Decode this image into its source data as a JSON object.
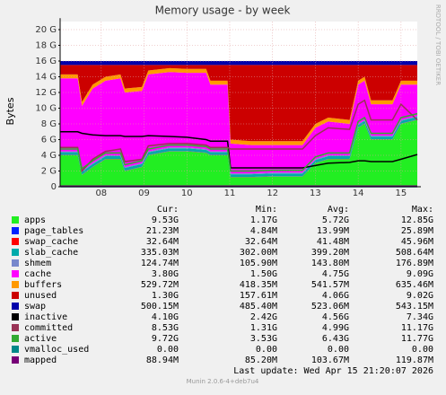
{
  "chart_data": {
    "type": "area",
    "title": "Memory usage - by week",
    "y_label": "Bytes",
    "side_text": "RRDTOOL / TOBI OETIKER",
    "last_update": "Last update: Wed Apr 15 21:20:07 2026",
    "footer": "Munin 2.0.6-4+deb7u4",
    "stat_headers": [
      "Cur:",
      "Min:",
      "Avg:",
      "Max:"
    ],
    "grid": true,
    "xlim": [
      7.04,
      15.38
    ],
    "xticks": [
      {
        "value": 8,
        "label": "08"
      },
      {
        "value": 9,
        "label": "09"
      },
      {
        "value": 10,
        "label": "10"
      },
      {
        "value": 11,
        "label": "11"
      },
      {
        "value": 12,
        "label": "12"
      },
      {
        "value": 13,
        "label": "13"
      },
      {
        "value": 14,
        "label": "14"
      },
      {
        "value": 15,
        "label": "15"
      }
    ],
    "ylim": [
      0,
      21
    ],
    "yticks": [
      {
        "value": 0,
        "label": "0"
      },
      {
        "value": 2,
        "label": "2 G"
      },
      {
        "value": 4,
        "label": "4 G"
      },
      {
        "value": 6,
        "label": "6 G"
      },
      {
        "value": 8,
        "label": "8 G"
      },
      {
        "value": 10,
        "label": "10 G"
      },
      {
        "value": 12,
        "label": "12 G"
      },
      {
        "value": 14,
        "label": "14 G"
      },
      {
        "value": 16,
        "label": "16 G"
      },
      {
        "value": 18,
        "label": "18 G"
      },
      {
        "value": 20,
        "label": "20 G"
      }
    ],
    "x": [
      7.05,
      7.45,
      7.55,
      7.8,
      8.1,
      8.45,
      8.55,
      8.95,
      9.1,
      9.6,
      10.0,
      10.45,
      10.55,
      10.95,
      11.02,
      11.5,
      12.0,
      12.7,
      13.0,
      13.3,
      13.8,
      14.0,
      14.15,
      14.3,
      14.8,
      15.0,
      15.38
    ],
    "series": [
      {
        "name": "apps",
        "color": "#22ee22",
        "stack": true,
        "stats": [
          "9.53G",
          "1.17G",
          "5.72G",
          "12.85G"
        ],
        "values": [
          4.0,
          4.0,
          1.5,
          2.5,
          3.5,
          3.5,
          2.0,
          2.5,
          4.0,
          4.5,
          4.5,
          4.3,
          4.0,
          4.0,
          1.2,
          1.2,
          1.3,
          1.3,
          3.0,
          3.5,
          3.5,
          7.5,
          8.0,
          6.0,
          6.0,
          8.0,
          8.5
        ]
      },
      {
        "name": "page_tables",
        "color": "#0022ff",
        "stack": true,
        "stats": [
          "21.23M",
          "4.84M",
          "13.99M",
          "25.89M"
        ],
        "values": [
          0.02,
          0.02,
          0.02,
          0.02,
          0.02,
          0.02,
          0.02,
          0.02,
          0.02,
          0.02,
          0.02,
          0.02,
          0.02,
          0.02,
          0.02,
          0.02,
          0.02,
          0.02,
          0.02,
          0.02,
          0.02,
          0.02,
          0.02,
          0.02,
          0.02,
          0.02,
          0.02
        ]
      },
      {
        "name": "swap_cache",
        "color": "#ff0000",
        "stack": true,
        "stats": [
          "32.64M",
          "32.64M",
          "41.48M",
          "45.96M"
        ],
        "values": [
          0.03,
          0.03,
          0.03,
          0.03,
          0.03,
          0.03,
          0.03,
          0.03,
          0.03,
          0.03,
          0.03,
          0.03,
          0.03,
          0.03,
          0.03,
          0.03,
          0.03,
          0.03,
          0.03,
          0.03,
          0.03,
          0.03,
          0.03,
          0.03,
          0.03,
          0.03,
          0.03
        ]
      },
      {
        "name": "slab_cache",
        "color": "#00aaaa",
        "stack": true,
        "stats": [
          "335.03M",
          "302.00M",
          "399.20M",
          "508.64M"
        ],
        "values": [
          0.33,
          0.33,
          0.33,
          0.33,
          0.33,
          0.33,
          0.33,
          0.33,
          0.33,
          0.33,
          0.33,
          0.33,
          0.33,
          0.33,
          0.33,
          0.33,
          0.33,
          0.33,
          0.33,
          0.33,
          0.33,
          0.33,
          0.33,
          0.33,
          0.33,
          0.33,
          0.33
        ]
      },
      {
        "name": "shmem",
        "color": "#7788cc",
        "stack": true,
        "stats": [
          "124.74M",
          "105.90M",
          "143.80M",
          "176.89M"
        ],
        "values": [
          0.12,
          0.12,
          0.12,
          0.12,
          0.12,
          0.12,
          0.12,
          0.12,
          0.12,
          0.12,
          0.12,
          0.12,
          0.12,
          0.12,
          0.12,
          0.12,
          0.12,
          0.12,
          0.12,
          0.12,
          0.12,
          0.12,
          0.12,
          0.12,
          0.12,
          0.12,
          0.12
        ]
      },
      {
        "name": "cache",
        "color": "#ff00ff",
        "stack": true,
        "stats": [
          "3.80G",
          "1.50G",
          "4.75G",
          "9.09G"
        ],
        "values": [
          9.3,
          9.3,
          8.3,
          9.5,
          9.5,
          9.8,
          9.5,
          9.2,
          9.8,
          9.6,
          9.5,
          9.7,
          8.5,
          8.5,
          3.8,
          3.6,
          3.5,
          3.5,
          4.0,
          4.3,
          4.0,
          5.0,
          5.0,
          4.0,
          4.0,
          4.5,
          4.0
        ]
      },
      {
        "name": "buffers",
        "color": "#ff9900",
        "stack": true,
        "stats": [
          "529.72M",
          "418.35M",
          "541.57M",
          "635.46M"
        ],
        "values": [
          0.5,
          0.5,
          0.5,
          0.5,
          0.5,
          0.5,
          0.5,
          0.5,
          0.5,
          0.5,
          0.5,
          0.5,
          0.5,
          0.5,
          0.5,
          0.5,
          0.5,
          0.5,
          0.5,
          0.5,
          0.5,
          0.5,
          0.5,
          0.5,
          0.5,
          0.5,
          0.5
        ]
      },
      {
        "name": "unused",
        "color": "#cc0000",
        "stack": true,
        "stats": [
          "1.30G",
          "157.61M",
          "4.06G",
          "9.02G"
        ],
        "values": [
          1.2,
          1.2,
          4.7,
          2.5,
          1.5,
          1.2,
          3.0,
          2.8,
          0.7,
          0.4,
          0.5,
          0.5,
          2.0,
          2.0,
          9.5,
          9.7,
          9.7,
          9.7,
          7.5,
          6.7,
          7.0,
          2.0,
          1.5,
          4.5,
          4.5,
          2.0,
          2.0
        ]
      },
      {
        "name": "swap",
        "color": "#0000aa",
        "stack": true,
        "stats": [
          "500.15M",
          "485.40M",
          "523.06M",
          "543.15M"
        ],
        "values": [
          0.5,
          0.5,
          0.5,
          0.5,
          0.5,
          0.5,
          0.5,
          0.5,
          0.5,
          0.5,
          0.5,
          0.5,
          0.5,
          0.5,
          0.5,
          0.5,
          0.5,
          0.5,
          0.5,
          0.5,
          0.5,
          0.5,
          0.5,
          0.5,
          0.5,
          0.5,
          0.5
        ]
      },
      {
        "name": "inactive",
        "color": "#000000",
        "stack": false,
        "stats": [
          "4.10G",
          "2.42G",
          "4.56G",
          "7.34G"
        ],
        "values": [
          7.0,
          7.0,
          6.8,
          6.6,
          6.5,
          6.5,
          6.4,
          6.4,
          6.5,
          6.4,
          6.3,
          6.0,
          5.8,
          5.8,
          2.4,
          2.4,
          2.4,
          2.4,
          2.7,
          3.0,
          3.1,
          3.3,
          3.3,
          3.2,
          3.2,
          3.5,
          4.1
        ]
      },
      {
        "name": "committed",
        "color": "#993355",
        "stack": false,
        "stats": [
          "8.53G",
          "1.31G",
          "4.99G",
          "11.17G"
        ],
        "values": [
          5.0,
          5.0,
          2.0,
          3.5,
          4.5,
          4.8,
          3.2,
          3.5,
          5.2,
          5.5,
          5.5,
          5.3,
          5.0,
          5.0,
          4.8,
          4.8,
          4.8,
          4.8,
          6.5,
          7.5,
          7.3,
          10.5,
          11.0,
          8.5,
          8.5,
          10.5,
          8.5
        ]
      },
      {
        "name": "active",
        "color": "#33aa33",
        "stack": false,
        "stats": [
          "9.72G",
          "3.53G",
          "6.43G",
          "11.77G"
        ],
        "values": [
          4.8,
          4.8,
          2.3,
          3.3,
          4.3,
          4.3,
          2.8,
          3.3,
          4.8,
          5.3,
          5.3,
          5.1,
          4.8,
          4.8,
          2.0,
          2.0,
          2.1,
          2.1,
          3.8,
          4.3,
          4.3,
          8.3,
          8.8,
          6.8,
          6.8,
          8.8,
          9.3
        ]
      },
      {
        "name": "vmalloc_used",
        "color": "#008888",
        "stack": false,
        "stats": [
          "0.00",
          "0.00",
          "0.00",
          "0.00"
        ],
        "values": [
          0,
          0,
          0,
          0,
          0,
          0,
          0,
          0,
          0,
          0,
          0,
          0,
          0,
          0,
          0,
          0,
          0,
          0,
          0,
          0,
          0,
          0,
          0,
          0,
          0,
          0,
          0
        ]
      },
      {
        "name": "mapped",
        "color": "#770077",
        "stack": false,
        "stats": [
          "88.94M",
          "85.20M",
          "103.67M",
          "119.87M"
        ],
        "values": [
          0.09,
          0.09,
          0.09,
          0.09,
          0.09,
          0.09,
          0.09,
          0.09,
          0.09,
          0.09,
          0.09,
          0.09,
          0.09,
          0.09,
          0.09,
          0.09,
          0.09,
          0.09,
          0.09,
          0.09,
          0.09,
          0.09,
          0.09,
          0.09,
          0.09,
          0.09,
          0.09
        ]
      }
    ]
  }
}
